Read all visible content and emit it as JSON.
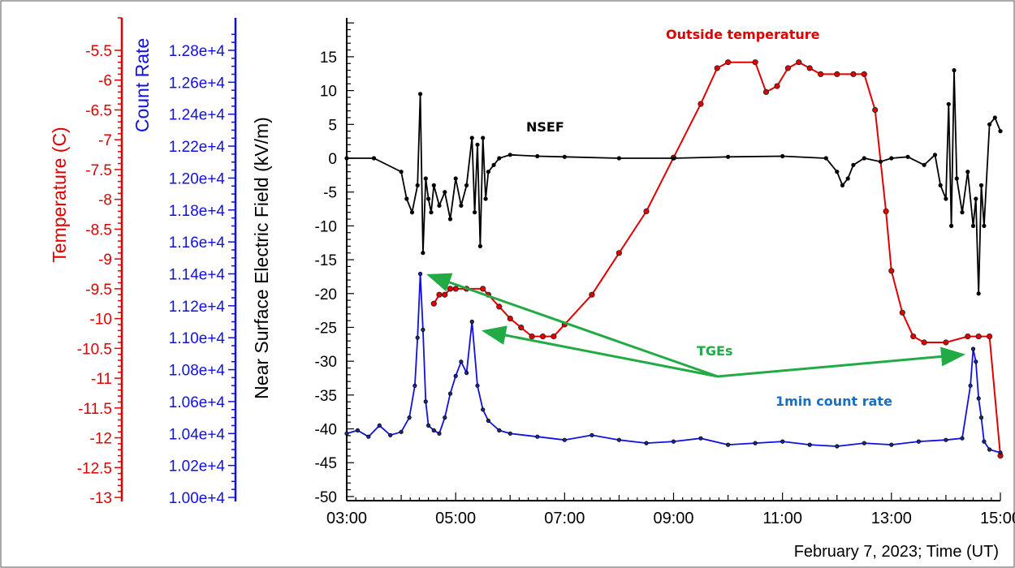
{
  "chart_data": {
    "type": "line",
    "xlabel": "February 7, 2023; Time (UT)",
    "x_ticks": [
      "03:00",
      "05:00",
      "07:00",
      "09:00",
      "11:00",
      "13:00",
      "15:00"
    ],
    "x_range_hours": [
      3,
      15
    ],
    "axes": {
      "temperature": {
        "label": "Temperature (C)",
        "ticks": [
          "-5.5",
          "-6",
          "-6.5",
          "-7",
          "-7.5",
          "-8",
          "-8.5",
          "-9",
          "-9.5",
          "-10",
          "-10.5",
          "-11",
          "-11.5",
          "-12",
          "-12.5",
          "-13"
        ],
        "range": [
          -13,
          -5
        ],
        "color": "#e00000"
      },
      "count_rate": {
        "label": "Count Rate",
        "ticks": [
          "1.28e+4",
          "1.26e+4",
          "1.24e+4",
          "1.22e+4",
          "1.20e+4",
          "1.18e+4",
          "1.16e+4",
          "1.14e+4",
          "1.12e+4",
          "1.10e+4",
          "1.08e+4",
          "1.06e+4",
          "1.04e+4",
          "1.02e+4",
          "1.00e+4"
        ],
        "range": [
          10000,
          12900
        ],
        "color": "#1010e0"
      },
      "electric_field": {
        "label": "Near Surface Electric Field (kV/m)",
        "ticks": [
          "15",
          "10",
          "5",
          "0",
          "-5",
          "-10",
          "-15",
          "-20",
          "-25",
          "-30",
          "-35",
          "-40",
          "-45",
          "-50"
        ],
        "range": [
          -50,
          20
        ],
        "color": "#000000"
      }
    },
    "series": [
      {
        "name": "NSEF",
        "axis": "electric_field",
        "color": "#000000",
        "x": [
          3.0,
          3.5,
          4.0,
          4.1,
          4.2,
          4.3,
          4.35,
          4.4,
          4.45,
          4.5,
          4.55,
          4.6,
          4.7,
          4.8,
          4.9,
          5.0,
          5.1,
          5.2,
          5.3,
          5.35,
          5.4,
          5.45,
          5.5,
          5.55,
          5.6,
          5.7,
          5.8,
          6.0,
          6.5,
          7.0,
          8.0,
          9.0,
          10.0,
          11.0,
          11.8,
          12.0,
          12.1,
          12.2,
          12.3,
          12.5,
          12.8,
          13.0,
          13.3,
          13.6,
          13.8,
          13.9,
          14.0,
          14.05,
          14.1,
          14.15,
          14.2,
          14.3,
          14.4,
          14.5,
          14.55,
          14.6,
          14.65,
          14.7,
          14.8,
          14.9,
          15.0
        ],
        "values": [
          0,
          0,
          -2,
          -6,
          -8,
          -4,
          9.5,
          -14,
          -3,
          -6,
          -8,
          -4,
          -7,
          -5,
          -9,
          -3,
          -7,
          -4,
          3,
          -8,
          2,
          -13,
          3,
          -6,
          -2,
          -1,
          0,
          0.5,
          0.3,
          0.2,
          0,
          0,
          0.2,
          0.3,
          0,
          -2,
          -4,
          -3,
          -1,
          0,
          -0.5,
          0,
          0.2,
          -1,
          0.5,
          -4,
          -6,
          8,
          -10,
          13,
          -3,
          -8,
          -2,
          -10,
          -6,
          -20,
          -4,
          -10,
          5,
          6,
          4
        ]
      },
      {
        "name": "Outside temperature",
        "axis": "temperature",
        "color": "#e00000",
        "x": [
          4.6,
          4.7,
          4.8,
          4.9,
          5.0,
          5.2,
          5.5,
          5.6,
          5.8,
          6.0,
          6.2,
          6.4,
          6.6,
          6.8,
          7.0,
          7.5,
          8.0,
          8.5,
          9.0,
          9.5,
          9.8,
          10.0,
          10.5,
          10.7,
          10.9,
          11.1,
          11.3,
          11.5,
          11.7,
          12.0,
          12.3,
          12.5,
          12.7,
          12.9,
          13.0,
          13.2,
          13.4,
          13.6,
          14.0,
          14.4,
          14.6,
          14.8,
          15.0
        ],
        "values": [
          -9.75,
          -9.6,
          -9.6,
          -9.5,
          -9.5,
          -9.5,
          -9.5,
          -9.6,
          -9.8,
          -10.0,
          -10.15,
          -10.3,
          -10.3,
          -10.3,
          -10.1,
          -9.6,
          -8.9,
          -8.2,
          -7.3,
          -6.4,
          -5.8,
          -5.7,
          -5.7,
          -6.2,
          -6.1,
          -5.8,
          -5.7,
          -5.8,
          -5.9,
          -5.9,
          -5.9,
          -5.9,
          -6.5,
          -8.2,
          -9.2,
          -9.9,
          -10.3,
          -10.4,
          -10.4,
          -10.3,
          -10.3,
          -10.3,
          -12.3
        ]
      },
      {
        "name": "1min count rate",
        "axis": "count_rate",
        "color": "#1010e0",
        "x": [
          3.0,
          3.2,
          3.4,
          3.6,
          3.8,
          4.0,
          4.15,
          4.25,
          4.3,
          4.35,
          4.4,
          4.45,
          4.5,
          4.6,
          4.7,
          4.8,
          4.9,
          5.0,
          5.1,
          5.2,
          5.3,
          5.4,
          5.5,
          5.6,
          5.8,
          6.0,
          6.5,
          7.0,
          7.5,
          8.0,
          8.5,
          9.0,
          9.5,
          10.0,
          10.5,
          11.0,
          11.5,
          12.0,
          12.5,
          13.0,
          13.5,
          14.0,
          14.3,
          14.45,
          14.5,
          14.55,
          14.6,
          14.65,
          14.7,
          14.8,
          15.0
        ],
        "values": [
          10400,
          10420,
          10380,
          10450,
          10390,
          10410,
          10500,
          10700,
          11000,
          11400,
          11050,
          10600,
          10450,
          10420,
          10400,
          10500,
          10650,
          10760,
          10850,
          10780,
          11100,
          10700,
          10550,
          10480,
          10420,
          10400,
          10380,
          10360,
          10390,
          10360,
          10340,
          10350,
          10370,
          10330,
          10340,
          10350,
          10330,
          10320,
          10340,
          10330,
          10350,
          10360,
          10370,
          10700,
          10930,
          10850,
          10620,
          10500,
          10350,
          10300,
          10280
        ]
      }
    ],
    "annotations": {
      "nsef": "NSEF",
      "temperature": "Outside temperature",
      "tges": "TGEs",
      "count_rate": "1min count rate"
    }
  }
}
